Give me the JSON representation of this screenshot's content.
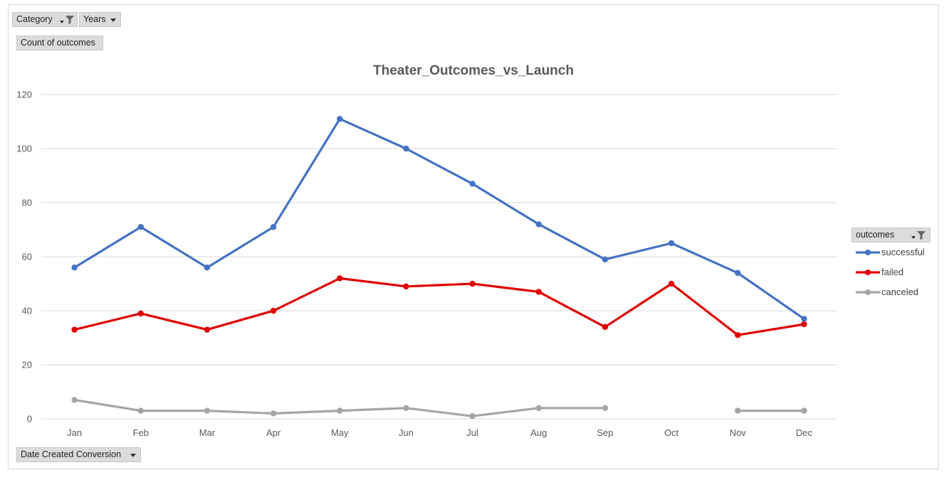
{
  "pivot": {
    "category_label": "Category",
    "years_label": "Years",
    "values_label": "Count  of outcomes",
    "axis_field_label": "Date  Created Conversion",
    "legend_field_label": "outcomes"
  },
  "chart_data": {
    "type": "line",
    "title": "Theater_Outcomes_vs_Launch",
    "categories": [
      "Jan",
      "Feb",
      "Mar",
      "Apr",
      "May",
      "Jun",
      "Jul",
      "Aug",
      "Sep",
      "Oct",
      "Nov",
      "Dec"
    ],
    "ylim": [
      0,
      120
    ],
    "yticks": [
      0,
      20,
      40,
      60,
      80,
      100,
      120
    ],
    "grid": true,
    "legend_position": "right",
    "series": [
      {
        "name": "successful",
        "color": "#4472c4",
        "values": [
          56,
          71,
          56,
          71,
          111,
          100,
          87,
          72,
          59,
          65,
          54,
          37
        ]
      },
      {
        "name": "failed",
        "color": "#e00000",
        "values": [
          33,
          39,
          33,
          40,
          52,
          49,
          50,
          47,
          34,
          50,
          31,
          35
        ]
      },
      {
        "name": "canceled",
        "color": "#a5a5a5",
        "values": [
          7,
          3,
          3,
          2,
          3,
          4,
          1,
          4,
          4,
          null,
          3,
          3
        ]
      }
    ]
  }
}
